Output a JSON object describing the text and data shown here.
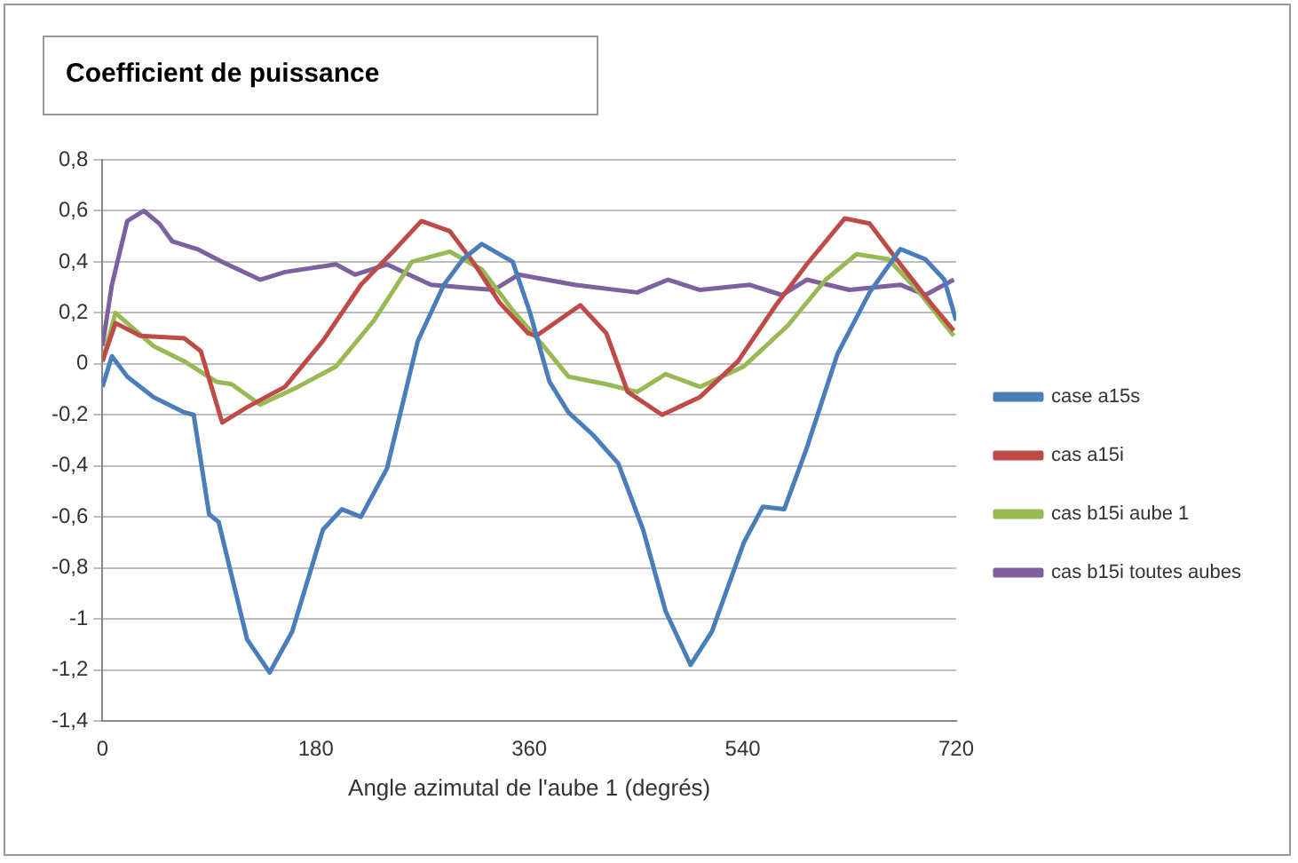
{
  "chart_data": {
    "type": "line",
    "title": "Coefficient de puissance",
    "xlabel": "Angle azimutal de l'aube 1 (degrés)",
    "xlim": [
      0,
      720
    ],
    "xticks": [
      0,
      180,
      360,
      540,
      720
    ],
    "ylim": [
      -1.4,
      0.8
    ],
    "yticks": [
      {
        "value": -1.4,
        "label": "-1,4"
      },
      {
        "value": -1.2,
        "label": "-1,2"
      },
      -1,
      {
        "value": -0.8,
        "label": "-0,8"
      },
      {
        "value": -0.6,
        "label": "-0,6"
      },
      {
        "value": -0.4,
        "label": "-0,4"
      },
      {
        "value": -0.2,
        "label": "-0,2"
      },
      0,
      {
        "value": 0.2,
        "label": "0,2"
      },
      {
        "value": 0.4,
        "label": "0,4"
      },
      {
        "value": 0.6,
        "label": "0,6"
      },
      {
        "value": 0.8,
        "label": "0,8"
      }
    ],
    "grid": "y",
    "legend": "right",
    "marker": "none",
    "line_style": "solid",
    "series": [
      {
        "name": "case a15s",
        "color": "#4a7ebb",
        "x": [
          0,
          8,
          21,
          43,
          69,
          77,
          90,
          98,
          122,
          141,
          160,
          186,
          202,
          218,
          240,
          266,
          288,
          304,
          320,
          346,
          360,
          377,
          393,
          414,
          435,
          456,
          475,
          496,
          514,
          541,
          557,
          575,
          594,
          620,
          647,
          673,
          694,
          710,
          720
        ],
        "values": [
          -0.09,
          0.03,
          -0.05,
          -0.13,
          -0.19,
          -0.2,
          -0.59,
          -0.62,
          -1.08,
          -1.21,
          -1.05,
          -0.65,
          -0.57,
          -0.6,
          -0.41,
          0.09,
          0.31,
          0.41,
          0.47,
          0.4,
          0.21,
          -0.07,
          -0.19,
          -0.28,
          -0.39,
          -0.65,
          -0.97,
          -1.18,
          -1.05,
          -0.7,
          -0.56,
          -0.57,
          -0.33,
          0.04,
          0.28,
          0.45,
          0.41,
          0.33,
          0.17
        ]
      },
      {
        "name": "cas a15i",
        "color": "#be4b48",
        "x": [
          0,
          11,
          32,
          69,
          83,
          101,
          122,
          154,
          186,
          218,
          245,
          269,
          293,
          314,
          335,
          359,
          366,
          403,
          425,
          443,
          472,
          504,
          536,
          568,
          594,
          626,
          647,
          673,
          700,
          718
        ],
        "values": [
          0.01,
          0.16,
          0.11,
          0.1,
          0.05,
          -0.23,
          -0.17,
          -0.09,
          0.09,
          0.31,
          0.44,
          0.56,
          0.52,
          0.39,
          0.24,
          0.12,
          0.11,
          0.23,
          0.12,
          -0.11,
          -0.2,
          -0.13,
          0.01,
          0.23,
          0.39,
          0.57,
          0.55,
          0.39,
          0.23,
          0.13
        ]
      },
      {
        "name": "cas b15i aube 1",
        "color": "#98b954",
        "x": [
          0,
          11,
          43,
          69,
          96,
          109,
          133,
          165,
          197,
          229,
          261,
          293,
          320,
          346,
          372,
          393,
          425,
          451,
          475,
          504,
          541,
          578,
          610,
          636,
          663,
          689,
          718
        ],
        "values": [
          0.01,
          0.2,
          0.07,
          0.01,
          -0.07,
          -0.08,
          -0.16,
          -0.09,
          -0.01,
          0.17,
          0.4,
          0.44,
          0.37,
          0.21,
          0.07,
          -0.05,
          -0.08,
          -0.11,
          -0.04,
          -0.09,
          -0.01,
          0.15,
          0.33,
          0.43,
          0.41,
          0.28,
          0.11
        ]
      },
      {
        "name": "cas b15i toutes aubes",
        "color": "#7d60a0",
        "x": [
          0,
          8,
          21,
          35,
          48,
          59,
          80,
          101,
          133,
          154,
          197,
          213,
          240,
          277,
          304,
          330,
          351,
          398,
          451,
          477,
          504,
          546,
          573,
          594,
          630,
          673,
          694,
          718
        ],
        "values": [
          0.07,
          0.31,
          0.56,
          0.6,
          0.55,
          0.48,
          0.45,
          0.4,
          0.33,
          0.36,
          0.39,
          0.35,
          0.39,
          0.31,
          0.3,
          0.29,
          0.35,
          0.31,
          0.28,
          0.33,
          0.29,
          0.31,
          0.27,
          0.33,
          0.29,
          0.31,
          0.27,
          0.33
        ]
      }
    ]
  }
}
